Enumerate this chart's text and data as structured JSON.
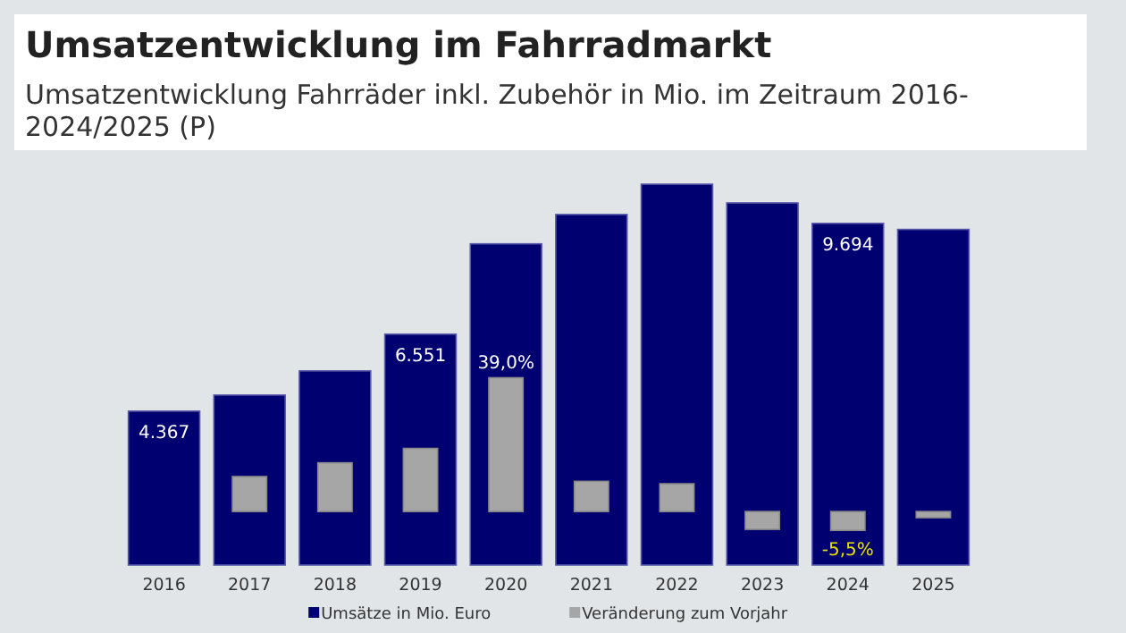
{
  "chart_data": {
    "type": "bar",
    "title": "Umsatzentwicklung im Fahrradmarkt",
    "subtitle": "Umsatzentwicklung Fahrräder inkl. Zubehör in Mio. im Zeitraum 2016-2024/2025 (P)",
    "categories": [
      "2016",
      "2017",
      "2018",
      "2019",
      "2020",
      "2021",
      "2022",
      "2023",
      "2024",
      "2025"
    ],
    "series": [
      {
        "name": "Umsätze in Mio. Euro",
        "color": "#000070",
        "values": [
          4367,
          4823,
          5509,
          6551,
          9114,
          9946,
          10806,
          10275,
          9694,
          9523
        ],
        "value_labels": [
          "4.367",
          null,
          null,
          "6.551",
          null,
          null,
          null,
          null,
          "9.694",
          null
        ]
      },
      {
        "name": "Veränderung zum Vorjahr",
        "color": "#a6a6a6",
        "axis": "y2",
        "values": [
          null,
          10.2,
          14.2,
          18.4,
          39.0,
          8.8,
          8.1,
          -5.2,
          -5.5,
          -1.8
        ],
        "value_labels": [
          null,
          null,
          null,
          null,
          "39,0%",
          null,
          null,
          null,
          "-5,5%",
          null
        ]
      }
    ],
    "tick_labels": "x",
    "legend": "bottom"
  }
}
